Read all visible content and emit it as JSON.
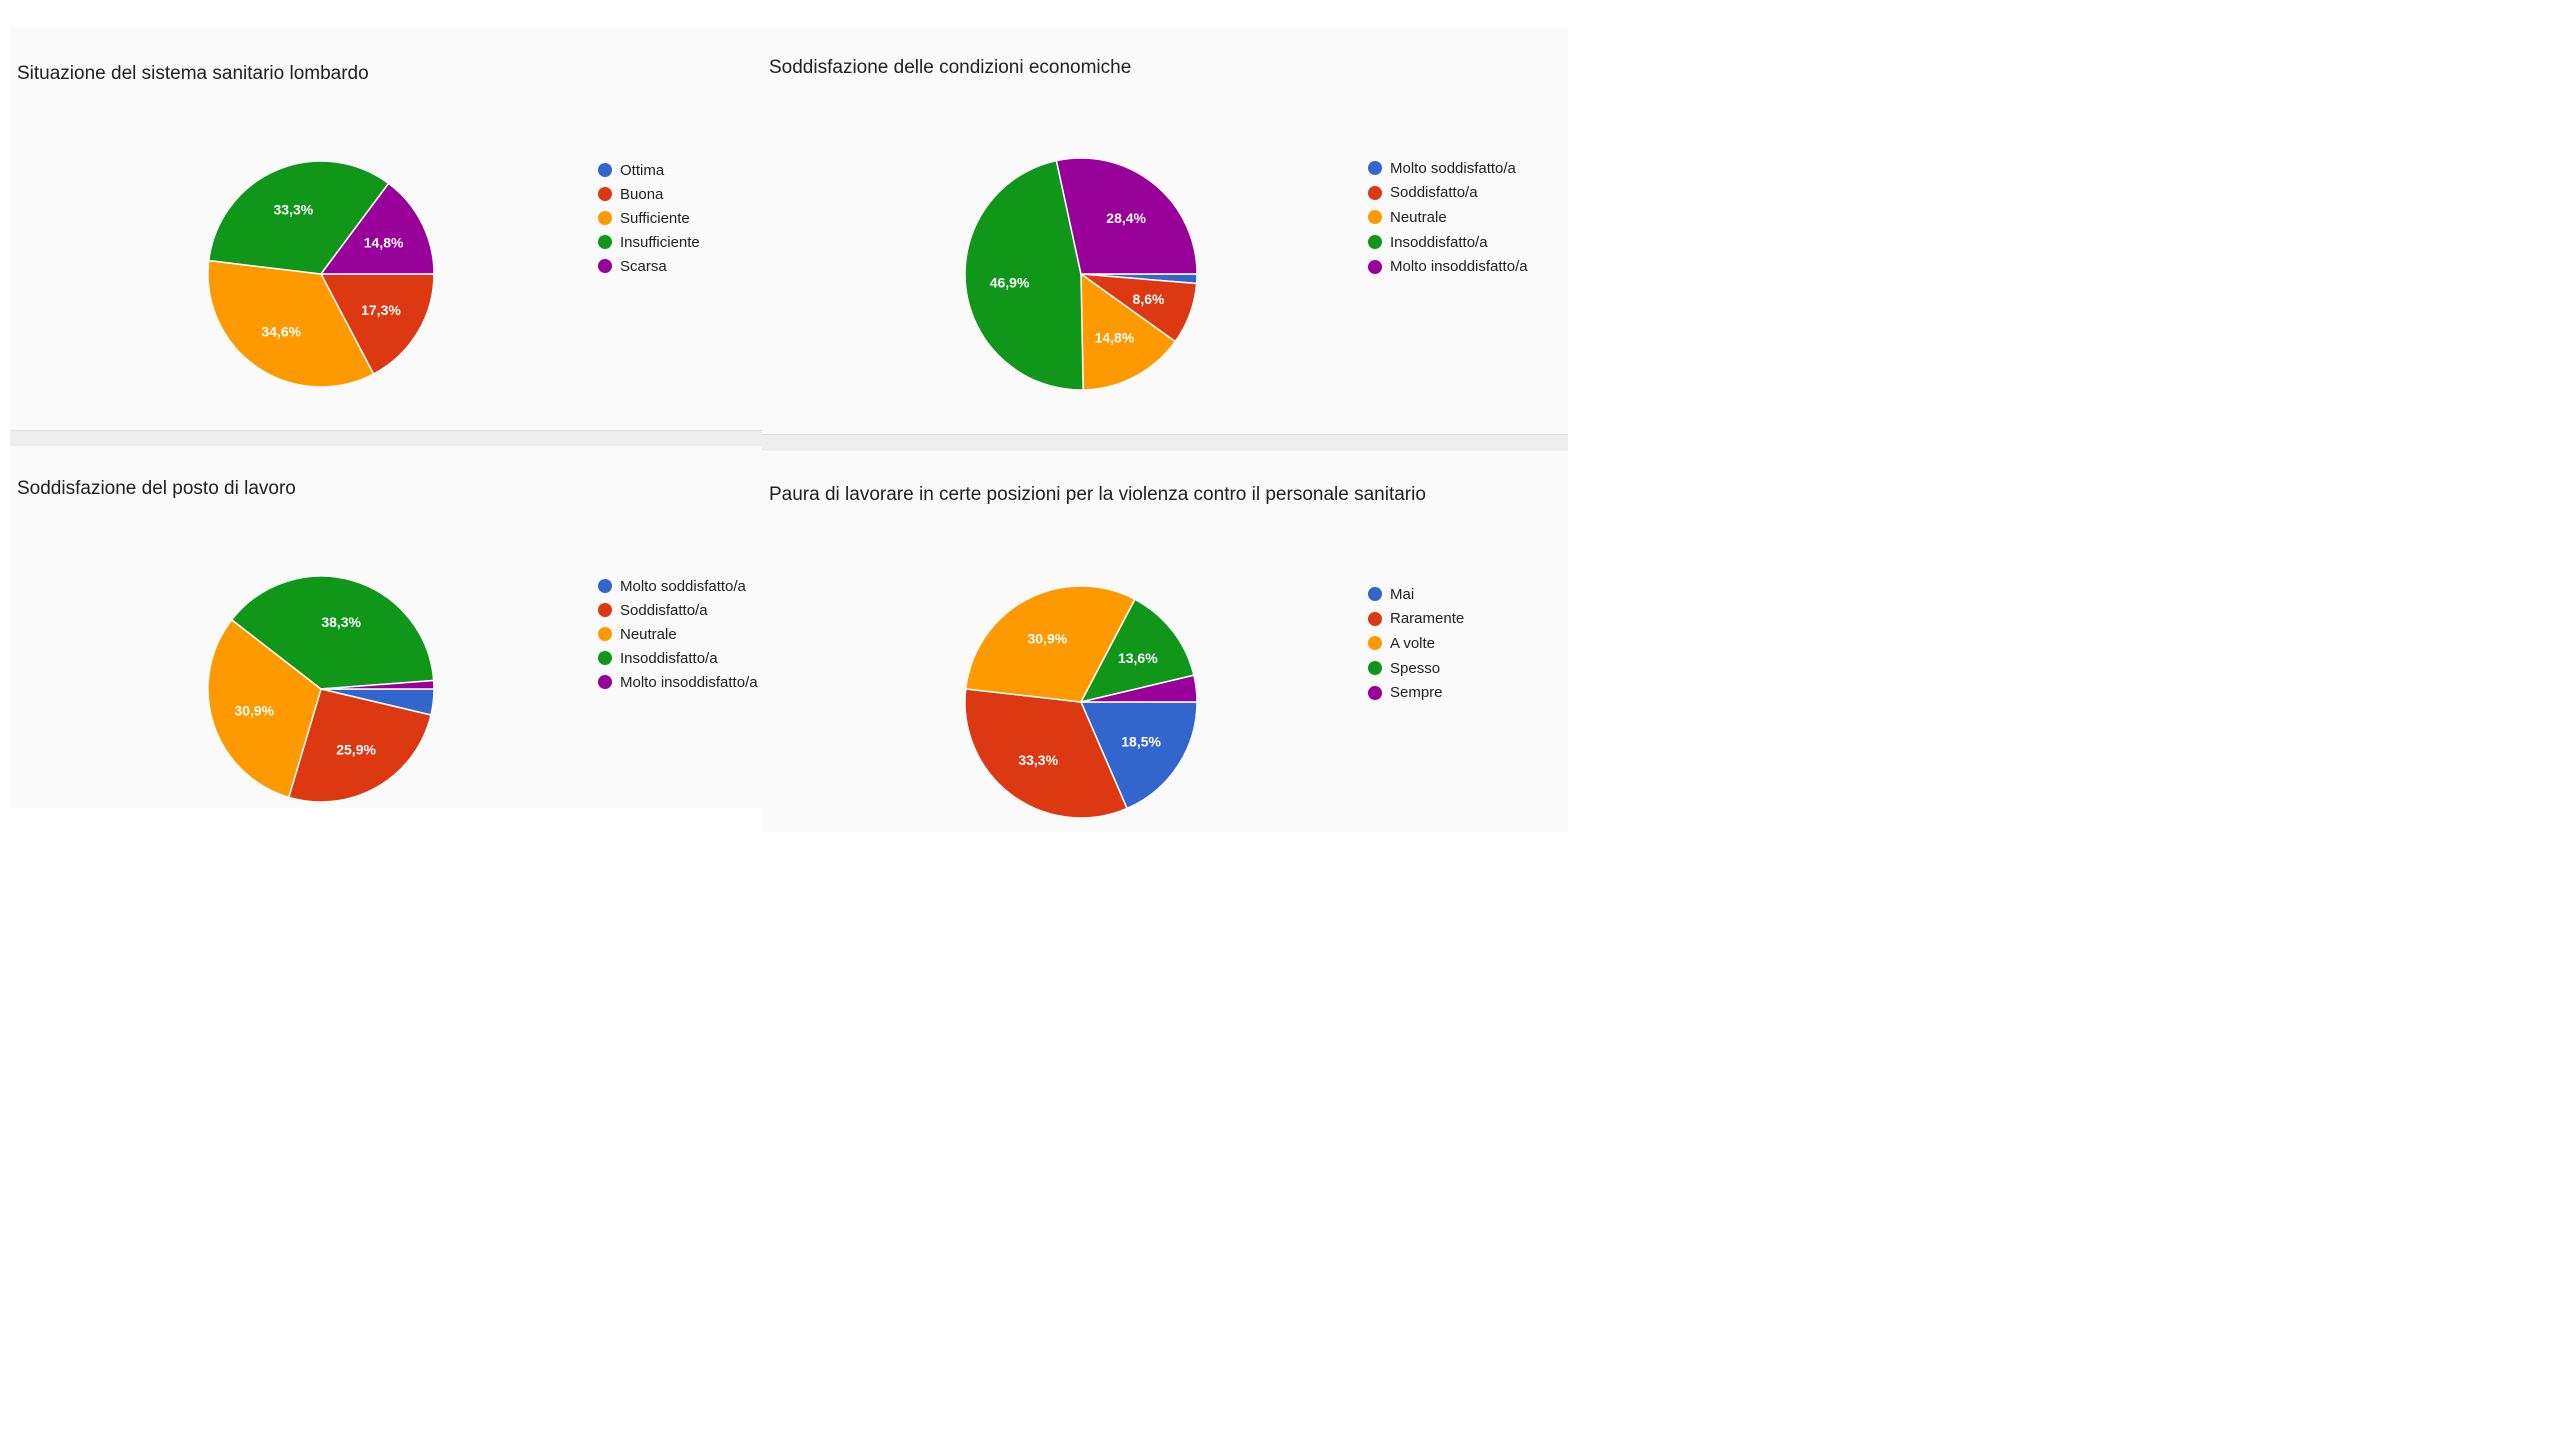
{
  "colors": {
    "blue": "#3366cc",
    "red": "#dc3912",
    "orange": "#ff9900",
    "green": "#109618",
    "purple": "#990099"
  },
  "chart_data": [
    {
      "type": "pie",
      "title": "Situazione del sistema sanitario lombardo",
      "categories": [
        "Ottima",
        "Buona",
        "Sufficiente",
        "Insufficiente",
        "Scarsa"
      ],
      "values": [
        0,
        17.3,
        34.6,
        33.3,
        14.8
      ],
      "slice_labels": [
        "",
        "17,3%",
        "34,6%",
        "33,3%",
        "14,8%"
      ],
      "colors": [
        "#3366cc",
        "#dc3912",
        "#ff9900",
        "#109618",
        "#990099"
      ],
      "legend_position": "right"
    },
    {
      "type": "pie",
      "title": "Soddisfazione delle condizioni economiche",
      "categories": [
        "Molto soddisfatto/a",
        "Soddisfatto/a",
        "Neutrale",
        "Insoddisfatto/a",
        "Molto insoddisfatto/a"
      ],
      "values": [
        1.3,
        8.6,
        14.8,
        46.9,
        28.4
      ],
      "slice_labels": [
        "",
        "8,6%",
        "14,8%",
        "46,9%",
        "28,4%"
      ],
      "colors": [
        "#3366cc",
        "#dc3912",
        "#ff9900",
        "#109618",
        "#990099"
      ],
      "legend_position": "right"
    },
    {
      "type": "pie",
      "title": "Soddisfazione del posto di lavoro",
      "categories": [
        "Molto soddisfatto/a",
        "Soddisfatto/a",
        "Neutrale",
        "Insoddisfatto/a",
        "Molto insoddisfatto/a"
      ],
      "values": [
        3.7,
        25.9,
        30.9,
        38.3,
        1.2
      ],
      "slice_labels": [
        "",
        "25,9%",
        "30,9%",
        "38,3%",
        ""
      ],
      "colors": [
        "#3366cc",
        "#dc3912",
        "#ff9900",
        "#109618",
        "#990099"
      ],
      "legend_position": "right"
    },
    {
      "type": "pie",
      "title": "Paura di lavorare in certe posizioni per la violenza contro il personale sanitario",
      "categories": [
        "Mai",
        "Raramente",
        "A volte",
        "Spesso",
        "Sempre"
      ],
      "values": [
        18.5,
        33.3,
        30.9,
        13.6,
        3.7
      ],
      "slice_labels": [
        "18,5%",
        "33,3%",
        "30,9%",
        "13,6%",
        ""
      ],
      "colors": [
        "#3366cc",
        "#dc3912",
        "#ff9900",
        "#109618",
        "#990099"
      ],
      "legend_position": "right"
    }
  ]
}
